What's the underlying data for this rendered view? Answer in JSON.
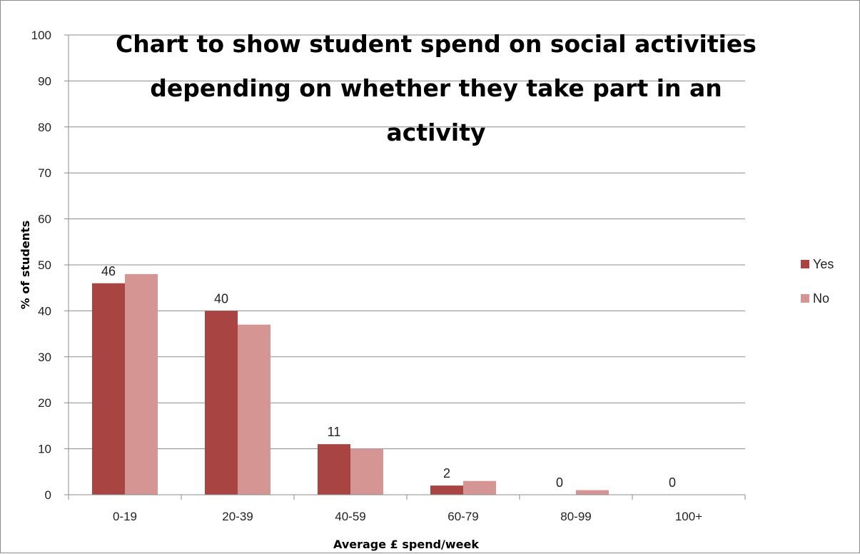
{
  "chart_data": {
    "type": "bar",
    "title_lines": [
      "Chart to show student spend on social activities",
      "depending on whether they take part in an",
      "activity"
    ],
    "xlabel": "Average £ spend/week",
    "ylabel": "% of students",
    "categories": [
      "0-19",
      "20-39",
      "40-59",
      "60-79",
      "80-99",
      "100+"
    ],
    "series": [
      {
        "name": "Yes",
        "color": "#a84442",
        "values": [
          46,
          40,
          11,
          2,
          0,
          0
        ]
      },
      {
        "name": "No",
        "color": "#d49593",
        "values": [
          48,
          37,
          10,
          3,
          1,
          0
        ]
      }
    ],
    "data_labels": {
      "series": "Yes",
      "values": [
        "46",
        "40",
        "11",
        "2",
        "0",
        "0"
      ]
    },
    "ylim": [
      0,
      100
    ],
    "yticks": [
      "0",
      "10",
      "20",
      "30",
      "40",
      "50",
      "60",
      "70",
      "80",
      "90",
      "100"
    ],
    "grid": true,
    "legend_position": "right"
  }
}
